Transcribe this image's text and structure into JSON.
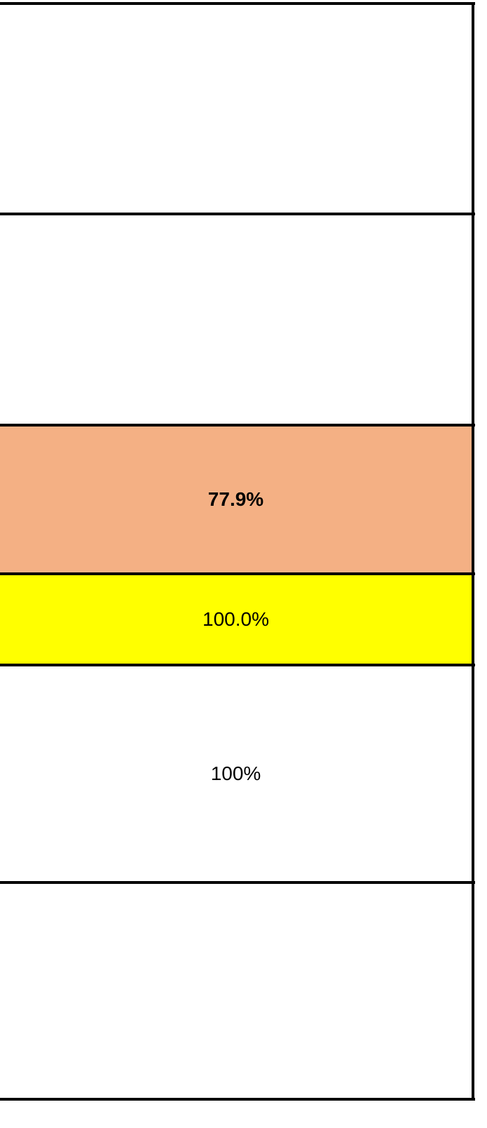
{
  "table": {
    "cells": [
      "77.9%",
      "100.0%",
      "100%"
    ]
  }
}
